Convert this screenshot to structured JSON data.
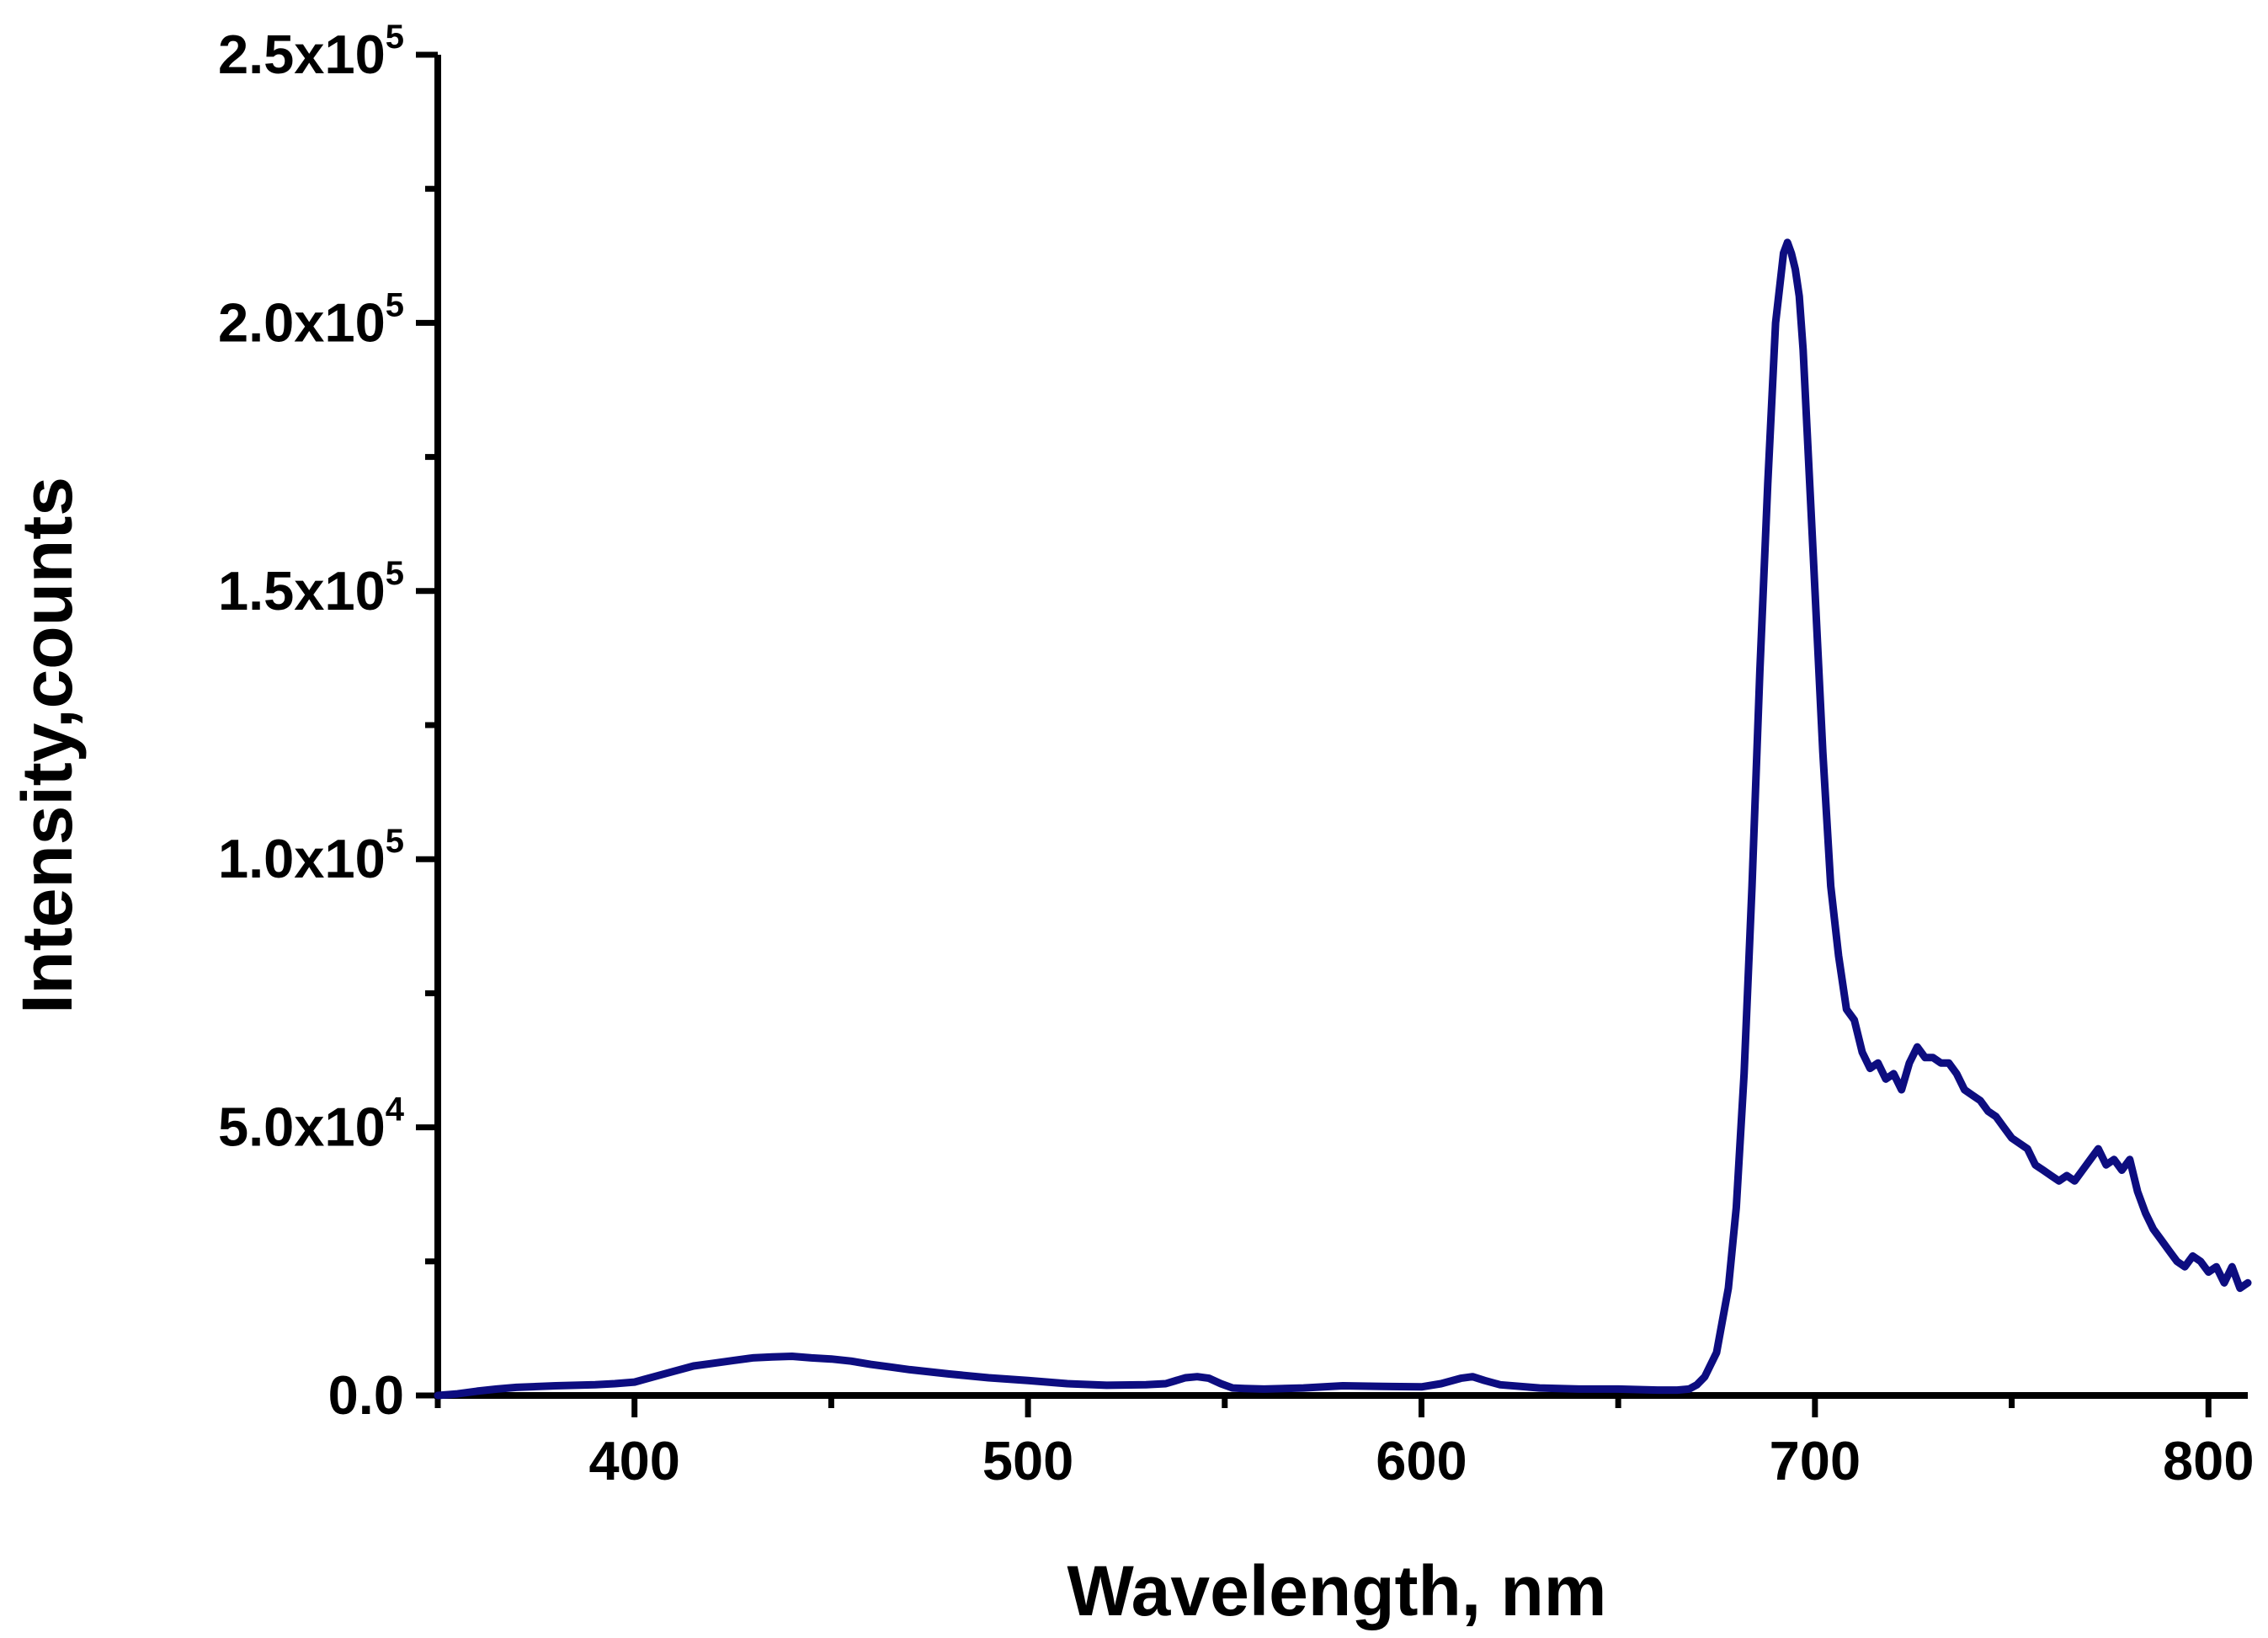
{
  "chart_data": {
    "type": "line",
    "title": "",
    "xlabel": "Wavelength, nm",
    "ylabel": "Intensity,counts",
    "xlim": [
      350,
      810
    ],
    "ylim": [
      0,
      250000
    ],
    "x_ticks": [
      {
        "value": 400,
        "label": "400"
      },
      {
        "value": 500,
        "label": "500"
      },
      {
        "value": 600,
        "label": "600"
      },
      {
        "value": 700,
        "label": "700"
      },
      {
        "value": 800,
        "label": "800"
      }
    ],
    "y_ticks": [
      {
        "value": 0,
        "mantissa": "0.0",
        "exponent": ""
      },
      {
        "value": 50000,
        "mantissa": "5.0x10",
        "exponent": "4"
      },
      {
        "value": 100000,
        "mantissa": "1.0x10",
        "exponent": "5"
      },
      {
        "value": 150000,
        "mantissa": "1.5x10",
        "exponent": "5"
      },
      {
        "value": 200000,
        "mantissa": "2.0x10",
        "exponent": "5"
      },
      {
        "value": 250000,
        "mantissa": "2.5x10",
        "exponent": "5"
      }
    ],
    "grid": false,
    "legend": "none",
    "line_color": "#0d0d80",
    "series": [
      {
        "x": [
          350,
          355,
          360,
          365,
          370,
          380,
          390,
          395,
          400,
          405,
          410,
          415,
          420,
          425,
          430,
          435,
          440,
          445,
          450,
          455,
          460,
          465,
          470,
          480,
          490,
          500,
          510,
          520,
          530,
          535,
          540,
          543,
          546,
          549,
          552,
          555,
          560,
          570,
          580,
          590,
          600,
          605,
          610,
          613,
          616,
          620,
          625,
          630,
          640,
          650,
          660,
          665,
          668,
          670,
          672,
          675,
          678,
          680,
          682,
          684,
          686,
          688,
          690,
          692,
          693,
          694,
          695,
          696,
          697,
          698,
          700,
          702,
          704,
          706,
          708,
          710,
          712,
          714,
          716,
          718,
          720,
          722,
          724,
          726,
          728,
          730,
          732,
          734,
          736,
          738,
          740,
          742,
          744,
          746,
          748,
          750,
          752,
          754,
          756,
          758,
          760,
          762,
          764,
          766,
          768,
          770,
          772,
          774,
          776,
          778,
          780,
          782,
          784,
          786,
          788,
          790,
          792,
          794,
          796,
          798,
          800,
          802,
          804,
          806,
          808,
          810
        ],
        "y": [
          0,
          300,
          800,
          1200,
          1500,
          1800,
          2000,
          2200,
          2500,
          3500,
          4500,
          5500,
          6000,
          6500,
          7000,
          7200,
          7300,
          7000,
          6800,
          6400,
          5800,
          5300,
          4800,
          4000,
          3300,
          2800,
          2200,
          1900,
          2000,
          2200,
          3300,
          3500,
          3200,
          2200,
          1400,
          1300,
          1200,
          1400,
          1800,
          1700,
          1600,
          2200,
          3200,
          3500,
          2800,
          2000,
          1700,
          1400,
          1200,
          1200,
          1000,
          1000,
          1200,
          2000,
          3500,
          8000,
          20000,
          35000,
          60000,
          95000,
          135000,
          170000,
          200000,
          213000,
          215000,
          213000,
          210000,
          205000,
          195000,
          180000,
          150000,
          120000,
          95000,
          82000,
          72000,
          70000,
          64000,
          61000,
          62000,
          59000,
          60000,
          57000,
          62000,
          65000,
          63000,
          63000,
          62000,
          62000,
          60000,
          57000,
          56000,
          55000,
          53000,
          52000,
          50000,
          48000,
          47000,
          46000,
          43000,
          42000,
          41000,
          40000,
          41000,
          40000,
          42000,
          44000,
          46000,
          43000,
          44000,
          42000,
          44000,
          38000,
          34000,
          31000,
          29000,
          27000,
          25000,
          24000,
          26000,
          25000,
          23000,
          24000,
          21000,
          24000,
          20000,
          21000
        ]
      }
    ]
  }
}
